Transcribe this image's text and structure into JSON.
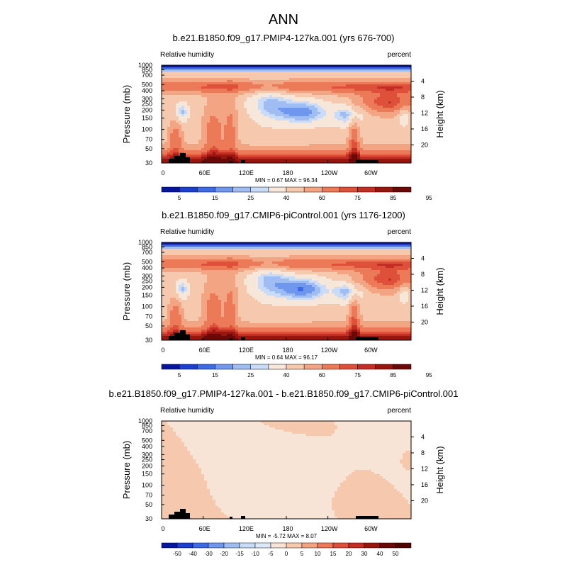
{
  "figure_title": "ANN",
  "chart_data": [
    {
      "type": "heatmap",
      "title": "b.e21.B1850.f09_g17.PMIP4-127ka.001 (yrs 676-700)",
      "left_label": "Relative humidity",
      "right_label": "percent",
      "ylabel": "Pressure (mb)",
      "y2label": "Height (km)",
      "x_ticks": [
        "0",
        "60E",
        "120E",
        "180",
        "120W",
        "60W"
      ],
      "y_ticks": [
        "30",
        "50",
        "70",
        "100",
        "150",
        "200",
        "250",
        "300",
        "400",
        "500",
        "700",
        "850",
        "1000"
      ],
      "y_tick_values": [
        30,
        50,
        70,
        100,
        150,
        200,
        250,
        300,
        400,
        500,
        700,
        850,
        1000
      ],
      "ylim": [
        1000,
        30
      ],
      "y2_ticks": [
        "20",
        "16",
        "12",
        "8",
        "4"
      ],
      "y2_tick_values": [
        20,
        16,
        12,
        8,
        4
      ],
      "stats": "MIN =   0.67  MAX =  96.34",
      "colorbar_labels": [
        "5",
        "15",
        "25",
        "40",
        "60",
        "75",
        "85",
        "95"
      ],
      "colorbar_colors": [
        "#07169e",
        "#1c3fcf",
        "#3d6be6",
        "#6f97ee",
        "#9fbdf2",
        "#c9dbf7",
        "#f7e6da",
        "#f6c8ad",
        "#f3a482",
        "#ec7a59",
        "#de503a",
        "#c22d24",
        "#99160f",
        "#6b0808"
      ],
      "field": "base"
    },
    {
      "type": "heatmap",
      "title": "b.e21.B1850.f09_g17.CMIP6-piControl.001 (yrs 1176-1200)",
      "left_label": "Relative humidity",
      "right_label": "percent",
      "ylabel": "Pressure (mb)",
      "y2label": "Height (km)",
      "x_ticks": [
        "0",
        "60E",
        "120E",
        "180",
        "120W",
        "60W"
      ],
      "y_ticks": [
        "30",
        "50",
        "70",
        "100",
        "150",
        "200",
        "250",
        "300",
        "400",
        "500",
        "700",
        "850",
        "1000"
      ],
      "y_tick_values": [
        30,
        50,
        70,
        100,
        150,
        200,
        250,
        300,
        400,
        500,
        700,
        850,
        1000
      ],
      "ylim": [
        1000,
        30
      ],
      "y2_ticks": [
        "20",
        "16",
        "12",
        "8",
        "4"
      ],
      "y2_tick_values": [
        20,
        16,
        12,
        8,
        4
      ],
      "stats": "MIN =   0.64  MAX =  96.17",
      "colorbar_labels": [
        "5",
        "15",
        "25",
        "40",
        "60",
        "75",
        "85",
        "95"
      ],
      "colorbar_colors": [
        "#07169e",
        "#1c3fcf",
        "#3d6be6",
        "#6f97ee",
        "#9fbdf2",
        "#c9dbf7",
        "#f7e6da",
        "#f6c8ad",
        "#f3a482",
        "#ec7a59",
        "#de503a",
        "#c22d24",
        "#99160f",
        "#6b0808"
      ],
      "field": "base2"
    },
    {
      "type": "heatmap",
      "title": "b.e21.B1850.f09_g17.PMIP4-127ka.001 - b.e21.B1850.f09_g17.CMIP6-piControl.001",
      "left_label": "Relative humidity",
      "right_label": "percent",
      "ylabel": "Pressure (mb)",
      "y2label": "Height (km)",
      "x_ticks": [
        "0",
        "60E",
        "120E",
        "180",
        "120W",
        "60W"
      ],
      "y_ticks": [
        "30",
        "50",
        "70",
        "100",
        "150",
        "200",
        "250",
        "300",
        "400",
        "500",
        "700",
        "850",
        "1000"
      ],
      "y_tick_values": [
        30,
        50,
        70,
        100,
        150,
        200,
        250,
        300,
        400,
        500,
        700,
        850,
        1000
      ],
      "ylim": [
        1000,
        30
      ],
      "y2_ticks": [
        "20",
        "16",
        "12",
        "8",
        "4"
      ],
      "y2_tick_values": [
        20,
        16,
        12,
        8,
        4
      ],
      "stats": "MIN =  -5.72  MAX =   8.07",
      "colorbar_labels": [
        "-50",
        "-40",
        "-30",
        "-20",
        "-15",
        "-10",
        "-5",
        "0",
        "5",
        "10",
        "15",
        "20",
        "30",
        "40",
        "50"
      ],
      "colorbar_colors": [
        "#07169e",
        "#1c3fcf",
        "#3d6be6",
        "#6f97ee",
        "#9fbdf2",
        "#c9dbf7",
        "#dde8f9",
        "#f8e4d6",
        "#f6c8ad",
        "#f3a482",
        "#ec7a59",
        "#de503a",
        "#c22d24",
        "#99160f",
        "#6b0808",
        "#500505"
      ],
      "field": "diff"
    }
  ]
}
